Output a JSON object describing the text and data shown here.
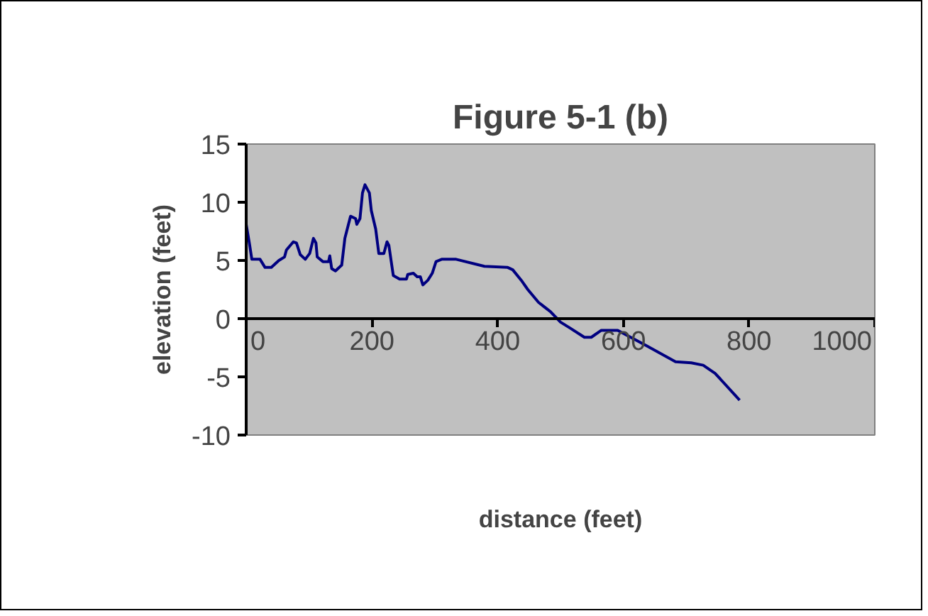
{
  "chart_data": {
    "type": "line",
    "title": "Figure 5-1 (b)",
    "xlabel": "distance (feet)",
    "ylabel": "elevation (feet)",
    "xlim": [
      0,
      1000
    ],
    "xticks": [
      0,
      200,
      400,
      600,
      800,
      1000
    ],
    "ylim": [
      -10,
      15
    ],
    "yticks": [
      -10,
      -5,
      0,
      5,
      10,
      15
    ],
    "grid": false,
    "marker": "none",
    "line_style": "solid",
    "series": [
      {
        "color": "#000080",
        "x": [
          0,
          5,
          9,
          22,
          30,
          40,
          52,
          61,
          64,
          75,
          80,
          86,
          94,
          101,
          107,
          111,
          113,
          122,
          131,
          133,
          136,
          142,
          152,
          157,
          166,
          174,
          176,
          181,
          185,
          189,
          196,
          199,
          206,
          211,
          219,
          224,
          227,
          234,
          244,
          255,
          257,
          266,
          272,
          277,
          281,
          289,
          296,
          302,
          311,
          334,
          379,
          416,
          424,
          439,
          448,
          465,
          484,
          500,
          515,
          538,
          549,
          565,
          591,
          636,
          683,
          708,
          727,
          746,
          785
        ],
        "values": [
          8.1,
          6.5,
          5.1,
          5.1,
          4.4,
          4.4,
          5.0,
          5.3,
          5.9,
          6.6,
          6.5,
          5.5,
          5.1,
          5.6,
          6.9,
          6.5,
          5.3,
          4.9,
          4.9,
          5.4,
          4.3,
          4.1,
          4.6,
          6.9,
          8.8,
          8.6,
          8.1,
          8.6,
          10.8,
          11.5,
          10.8,
          9.3,
          7.7,
          5.6,
          5.6,
          6.6,
          6.3,
          3.7,
          3.4,
          3.4,
          3.8,
          3.9,
          3.6,
          3.6,
          2.9,
          3.3,
          3.9,
          4.9,
          5.1,
          5.1,
          4.5,
          4.4,
          4.2,
          3.2,
          2.5,
          1.4,
          0.6,
          -0.3,
          -0.8,
          -1.6,
          -1.6,
          -1.0,
          -1.0,
          -2.3,
          -3.7,
          -3.8,
          -4.0,
          -4.7,
          -7.0
        ]
      }
    ]
  }
}
